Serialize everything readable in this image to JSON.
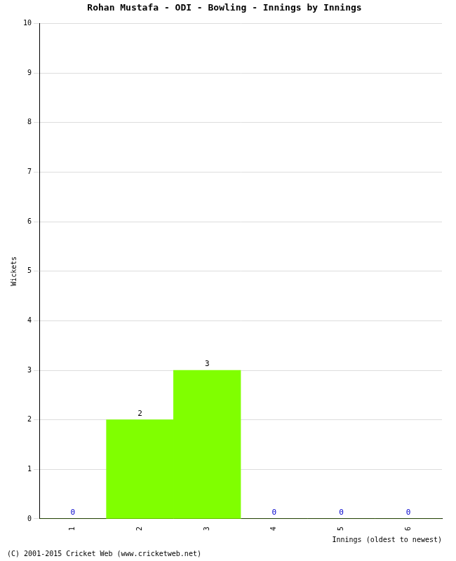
{
  "chart_data": {
    "type": "bar",
    "title": "Rohan Mustafa - ODI - Bowling - Innings by Innings",
    "x_label": "Innings (oldest to newest)",
    "y_label": "Wickets",
    "categories": [
      "1",
      "2",
      "3",
      "4",
      "5",
      "6"
    ],
    "values": [
      0,
      2,
      3,
      0,
      0,
      0
    ],
    "color": "#80ff00",
    "ylim": [
      0,
      10
    ],
    "yticks": [
      0,
      1,
      2,
      3,
      4,
      5,
      6,
      7,
      8,
      9,
      10
    ],
    "grid": true,
    "data_labels": true,
    "annotations": [
      "(C) 2001-2015 Cricket Web (www.cricketweb.net)"
    ]
  }
}
